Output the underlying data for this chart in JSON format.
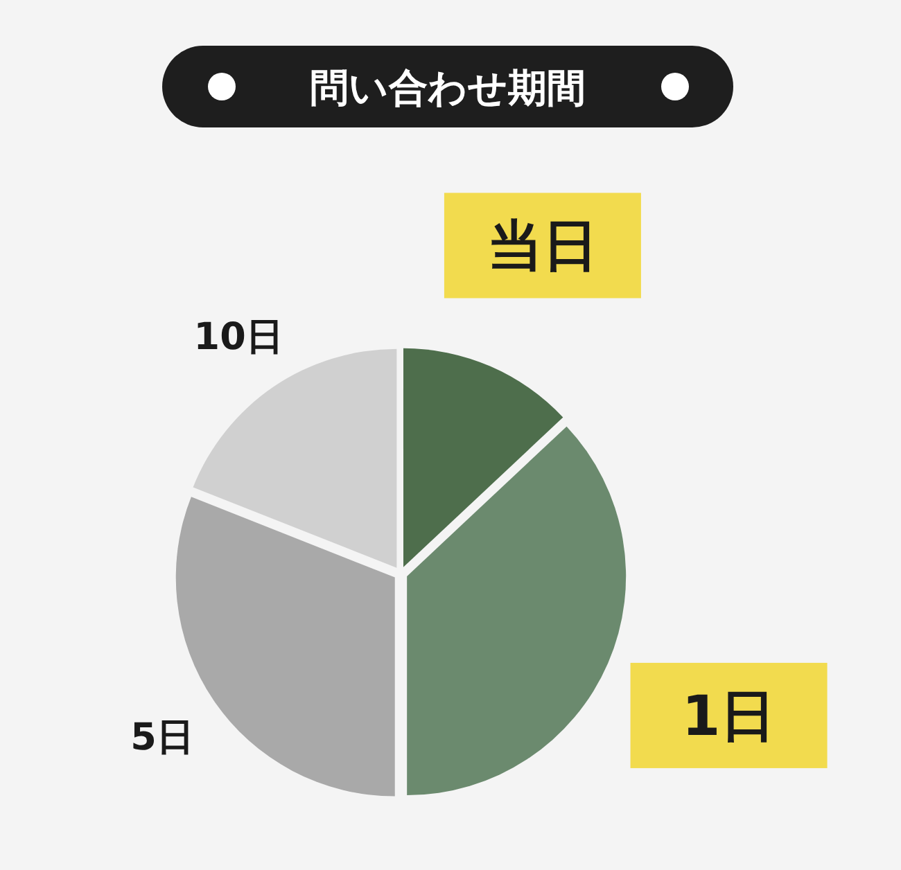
{
  "chart_data": {
    "type": "pie",
    "title": "問い合わせ期間",
    "categories": [
      "当日",
      "1日",
      "5日",
      "10日"
    ],
    "values": [
      13,
      37,
      31,
      19
    ],
    "colors": [
      "#4e6e4c",
      "#6b8a6e",
      "#a9a9a9",
      "#d0d0d0"
    ]
  }
}
